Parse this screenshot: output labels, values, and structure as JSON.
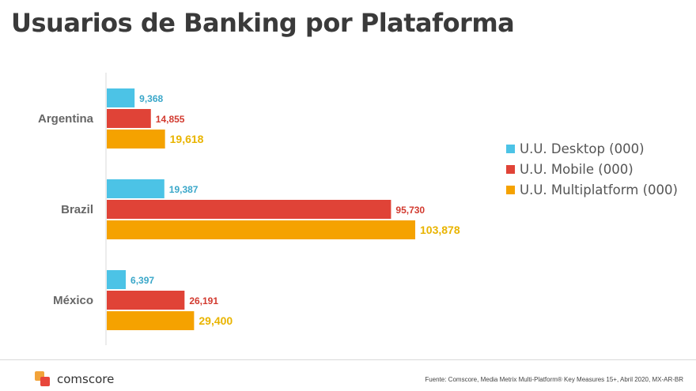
{
  "title": "Usuarios de Banking por Plataforma",
  "chart_data": {
    "type": "bar",
    "orientation": "horizontal",
    "categories": [
      "Argentina",
      "Brazil",
      "México"
    ],
    "series": [
      {
        "name": "U.U. Desktop (000)",
        "color": "#4cc3e6",
        "label_color": "#3aa7c9",
        "values": [
          9368,
          19387,
          6397
        ]
      },
      {
        "name": "U.U. Mobile (000)",
        "color": "#e04337",
        "label_color": "#d23a2f",
        "values": [
          14855,
          95730,
          26191
        ]
      },
      {
        "name": "U.U. Multiplatform (000)",
        "color": "#f5a200",
        "label_color": "#e9b400",
        "values": [
          19618,
          103878,
          29400
        ]
      }
    ],
    "xlim": [
      0,
      103878
    ],
    "value_labels": [
      [
        "9,368",
        "14,855",
        "19,618"
      ],
      [
        "19,387",
        "95,730",
        "103,878"
      ],
      [
        "6,397",
        "26,191",
        "29,400"
      ]
    ],
    "grid": false,
    "legend_position": "right"
  },
  "logo": {
    "text": "comscore"
  },
  "source": "Fuente: Comscore, Media Metrix Multi-Platform® Key Measures 15+, Abril 2020, MX-AR-BR"
}
